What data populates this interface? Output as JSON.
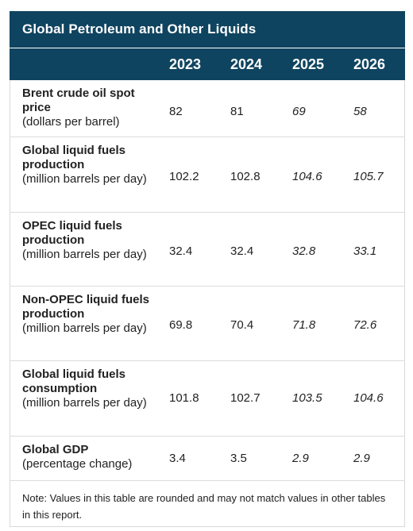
{
  "title": "Global Petroleum and Other Liquids",
  "years": [
    "2023",
    "2024",
    "2025",
    "2026"
  ],
  "rows": [
    {
      "label": "Brent crude oil spot price",
      "unit": "(dollars per barrel)",
      "values": [
        "82",
        "81",
        "69",
        "58"
      ]
    },
    {
      "label": "Global liquid fuels production",
      "unit": "(million barrels per day)",
      "values": [
        "102.2",
        "102.8",
        "104.6",
        "105.7"
      ]
    },
    {
      "label": "OPEC liquid fuels production",
      "unit": "(million barrels per day)",
      "values": [
        "32.4",
        "32.4",
        "32.8",
        "33.1"
      ]
    },
    {
      "label": "Non-OPEC liquid fuels production",
      "unit": "(million barrels per day)",
      "values": [
        "69.8",
        "70.4",
        "71.8",
        "72.6"
      ]
    },
    {
      "label": "Global liquid fuels consumption",
      "unit": "(million barrels per day)",
      "values": [
        "101.8",
        "102.7",
        "103.5",
        "104.6"
      ]
    },
    {
      "label": "Global GDP",
      "unit": "(percentage change)",
      "values": [
        "3.4",
        "3.5",
        "2.9",
        "2.9"
      ]
    }
  ],
  "note": "Note: Values in this table are rounded and may not match values in other tables in this report."
}
